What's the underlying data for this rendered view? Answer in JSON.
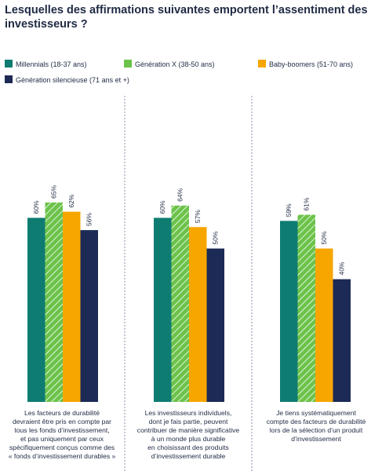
{
  "title": "Lesquelles des affirmations suivantes emportent l’assentiment des investisseurs ?",
  "colors": {
    "millennials": "#0f7c72",
    "genx": "#6cc34a",
    "boomers": "#f7a600",
    "silent": "#1c2a55",
    "separator": "#8a94a8"
  },
  "chart_data": {
    "type": "bar",
    "title": "Lesquelles des affirmations suivantes emportent l’assentiment des investisseurs ?",
    "legend_position": "top",
    "grid": false,
    "ylim": [
      0,
      100
    ],
    "categories": [
      "Les facteurs de durabilité devraient être pris en compte par tous les fonds d’investissement, et pas uniquement par ceux spécifiquement conçus comme des « fonds d’investissement durables »",
      "Les investisseurs individuels, dont je fais partie, peuvent contribuer de manière significative à un monde plus durable en choisissant des produits d’investissement durable",
      "Je tiens systématiquement compte des facteurs de durabilité lors de la sélection d’un produit d’investissement"
    ],
    "series": [
      {
        "name": "Millennials (18-37 ans)",
        "values": [
          60,
          60,
          59
        ],
        "labels": [
          "60%",
          "60%",
          "59%"
        ],
        "color": "#0f7c72",
        "pattern": "solid"
      },
      {
        "name": "Génération X (38-50 ans)",
        "values": [
          65,
          64,
          61
        ],
        "labels": [
          "65%",
          "64%",
          "61%"
        ],
        "color": "#6cc34a",
        "pattern": "hatched"
      },
      {
        "name": "Baby-boomers (51-70 ans)",
        "values": [
          62,
          57,
          50
        ],
        "labels": [
          "62%",
          "57%",
          "50%"
        ],
        "color": "#f7a600",
        "pattern": "solid"
      },
      {
        "name": "Génération silencieuse (71 ans et +)",
        "values": [
          56,
          50,
          40
        ],
        "labels": [
          "56%",
          "50%",
          "40%"
        ],
        "color": "#1c2a55",
        "pattern": "solid"
      }
    ]
  },
  "captions": [
    [
      "Les facteurs de durabilité",
      "devraient être pris en compte par",
      "tous les fonds d’investissement,",
      "et pas uniquement par ceux",
      "spécifiquement conçus comme des",
      "« fonds d’investissement durables »"
    ],
    [
      "Les investisseurs individuels,",
      "dont je fais partie, peuvent",
      "contribuer de manière significative",
      "à un monde plus durable",
      "en choisissant des produits",
      "d’investissement durable"
    ],
    [
      "Je tiens systématiquement",
      "compte des facteurs de durabilité",
      "lors de la sélection d’un produit",
      "d’investissement"
    ]
  ]
}
